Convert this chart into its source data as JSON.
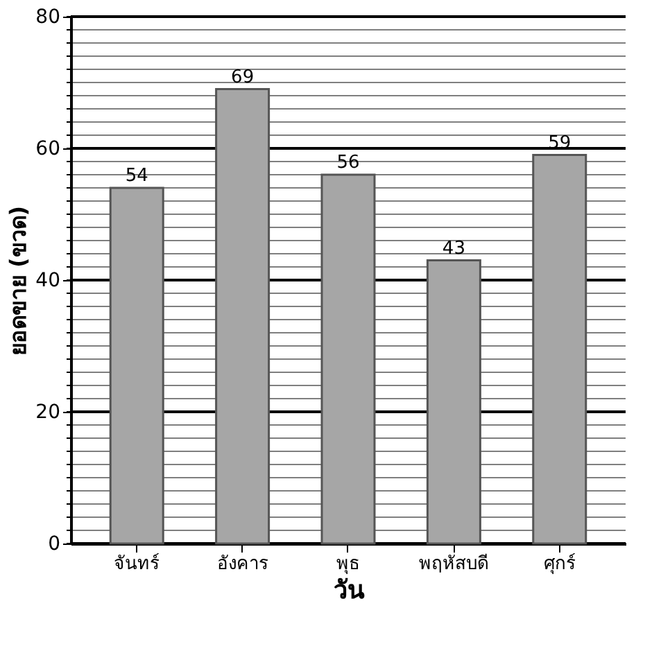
{
  "chart_data": {
    "type": "bar",
    "xlabel": "วัน",
    "ylabel": "ยอดขาย (ขวด)",
    "categories": [
      "จันทร์",
      "อังคาร",
      "พุธ",
      "พฤหัสบดี",
      "ศุกร์"
    ],
    "values": [
      54,
      69,
      56,
      43,
      59
    ],
    "color": "#a6a6a6",
    "ylim": [
      0,
      80
    ],
    "yticks": [
      0,
      {
        "value": 2,
        "label": null
      },
      {
        "value": 4,
        "label": null
      },
      {
        "value": 6,
        "label": null
      },
      {
        "value": 8,
        "label": null
      },
      {
        "value": 10,
        "label": null
      },
      {
        "value": 12,
        "label": null
      },
      {
        "value": 14,
        "label": null
      },
      {
        "value": 16,
        "label": null
      },
      {
        "value": 18,
        "label": null
      },
      20,
      {
        "value": 22,
        "label": null
      },
      {
        "value": 24,
        "label": null
      },
      {
        "value": 26,
        "label": null
      },
      {
        "value": 28,
        "label": null
      },
      {
        "value": 30,
        "label": null
      },
      {
        "value": 32,
        "label": null
      },
      {
        "value": 34,
        "label": null
      },
      {
        "value": 36,
        "label": null
      },
      {
        "value": 38,
        "label": null
      },
      40,
      {
        "value": 42,
        "label": null
      },
      {
        "value": 44,
        "label": null
      },
      {
        "value": 46,
        "label": null
      },
      {
        "value": 48,
        "label": null
      },
      {
        "value": 50,
        "label": null
      },
      {
        "value": 52,
        "label": null
      },
      {
        "value": 54,
        "label": null
      },
      {
        "value": 56,
        "label": null
      },
      {
        "value": 58,
        "label": null
      },
      60,
      {
        "value": 62,
        "label": null
      },
      {
        "value": 64,
        "label": null
      },
      {
        "value": 66,
        "label": null
      },
      {
        "value": 68,
        "label": null
      },
      {
        "value": 70,
        "label": null
      },
      {
        "value": 72,
        "label": null
      },
      {
        "value": 74,
        "label": null
      },
      {
        "value": 76,
        "label": null
      },
      {
        "value": 78,
        "label": null
      },
      80
    ],
    "grid": true,
    "data_labels": true
  }
}
